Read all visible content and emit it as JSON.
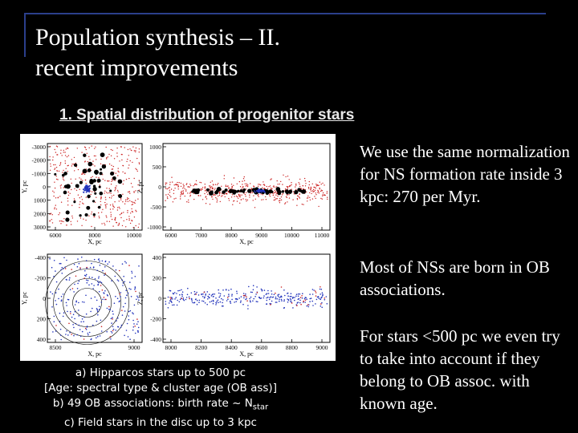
{
  "slide": {
    "title": "Population synthesis – II.\nrecent improvements",
    "subtitle": "1. Spatial distribution of progenitor stars",
    "caption": {
      "line_a": "a) Hipparcos stars up to 500 pc",
      "line_b": "[Age: spectral type & cluster age (OB ass)]",
      "line_c_pre": "b) 49 OB associations: birth rate ~ N",
      "line_c_sub": "star",
      "line_d": "c) Field stars in the disc up to 3 kpc"
    },
    "paragraphs": [
      "We use the same normalization for NS formation rate inside 3 kpc: 270 per Myr.",
      "Most of NSs are born in OB associations.",
      "For stars <500 pc we even try to take into account if they belong to OB assoc. with known age."
    ]
  },
  "plots": {
    "top_left": {
      "ylabel": "Y, pc",
      "xlabel": "X, pc",
      "yticks": [
        "-3000",
        "-2000",
        "-1000",
        "0",
        "1000",
        "2000",
        "3000"
      ],
      "xticks": [
        "6000",
        "8000",
        "10000"
      ]
    },
    "top_right": {
      "ylabel": "Z, pc",
      "xlabel": "X, pc",
      "yticks": [
        "1000",
        "500",
        "0",
        "-500",
        "-1000"
      ],
      "xticks": [
        "6000",
        "7000",
        "8000",
        "9000",
        "10000",
        "11000"
      ]
    },
    "bottom_left": {
      "ylabel": "Y, pc",
      "xlabel": "X, pc",
      "yticks": [
        "-400",
        "-200",
        "0",
        "200",
        "400"
      ],
      "xticks": [
        "8500",
        "9000"
      ]
    },
    "bottom_right": {
      "ylabel": "Z, pc",
      "xlabel": "X, pc",
      "yticks": [
        "400",
        "200",
        "0",
        "-200",
        "-400"
      ],
      "xticks": [
        "8000",
        "8200",
        "8400",
        "8600",
        "8800",
        "9000"
      ]
    }
  },
  "colors": {
    "field": "#cc2222",
    "ob": "#000000",
    "hip": "#2233bb",
    "background": "#000000",
    "frame": "#2b3f8c"
  }
}
